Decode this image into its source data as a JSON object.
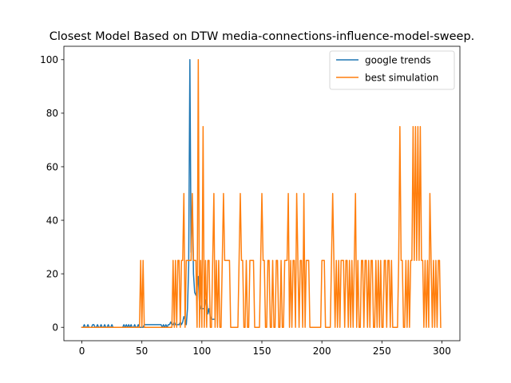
{
  "chart_data": {
    "type": "line",
    "title": "Closest Model Based on DTW media-connections-influence-model-sweep.",
    "xlabel": "",
    "ylabel": "",
    "xlim": [
      -15,
      315
    ],
    "ylim": [
      -5,
      105
    ],
    "xticks": [
      0,
      50,
      100,
      150,
      200,
      250,
      300
    ],
    "yticks": [
      0,
      20,
      40,
      60,
      80,
      100
    ],
    "legend_position": "upper right",
    "grid": false,
    "series": [
      {
        "name": "google trends",
        "color": "#1f77b4",
        "points": [
          [
            0,
            0
          ],
          [
            1,
            0
          ],
          [
            2,
            1
          ],
          [
            3,
            0
          ],
          [
            4,
            0
          ],
          [
            5,
            1
          ],
          [
            6,
            0
          ],
          [
            7,
            0
          ],
          [
            8,
            0
          ],
          [
            9,
            1
          ],
          [
            10,
            1
          ],
          [
            11,
            0
          ],
          [
            12,
            0
          ],
          [
            13,
            1
          ],
          [
            14,
            0
          ],
          [
            15,
            0
          ],
          [
            16,
            1
          ],
          [
            17,
            0
          ],
          [
            18,
            0
          ],
          [
            19,
            1
          ],
          [
            20,
            0
          ],
          [
            21,
            0
          ],
          [
            22,
            1
          ],
          [
            23,
            0
          ],
          [
            24,
            0
          ],
          [
            25,
            1
          ],
          [
            26,
            0
          ],
          [
            27,
            0
          ],
          [
            28,
            0
          ],
          [
            29,
            0
          ],
          [
            30,
            0
          ],
          [
            31,
            0
          ],
          [
            32,
            0
          ],
          [
            33,
            0
          ],
          [
            34,
            0
          ],
          [
            35,
            1
          ],
          [
            36,
            0
          ],
          [
            37,
            1
          ],
          [
            38,
            0
          ],
          [
            39,
            1
          ],
          [
            40,
            0
          ],
          [
            41,
            1
          ],
          [
            42,
            0
          ],
          [
            43,
            0
          ],
          [
            44,
            1
          ],
          [
            45,
            0
          ],
          [
            46,
            0
          ],
          [
            47,
            1
          ],
          [
            48,
            0
          ],
          [
            49,
            0
          ],
          [
            50,
            0
          ],
          [
            51,
            0
          ],
          [
            52,
            1
          ],
          [
            53,
            1
          ],
          [
            54,
            1
          ],
          [
            55,
            1
          ],
          [
            56,
            1
          ],
          [
            57,
            1
          ],
          [
            58,
            1
          ],
          [
            59,
            1
          ],
          [
            60,
            1
          ],
          [
            61,
            1
          ],
          [
            62,
            1
          ],
          [
            63,
            1
          ],
          [
            64,
            1
          ],
          [
            65,
            1
          ],
          [
            66,
            1
          ],
          [
            67,
            0
          ],
          [
            68,
            1
          ],
          [
            69,
            0
          ],
          [
            70,
            1
          ],
          [
            71,
            0
          ],
          [
            72,
            1
          ],
          [
            73,
            1
          ],
          [
            74,
            2
          ],
          [
            75,
            1
          ],
          [
            76,
            1
          ],
          [
            77,
            2
          ],
          [
            78,
            1
          ],
          [
            79,
            1
          ],
          [
            80,
            1
          ],
          [
            81,
            1
          ],
          [
            82,
            2
          ],
          [
            83,
            1
          ],
          [
            84,
            2
          ],
          [
            85,
            4
          ],
          [
            86,
            3
          ],
          [
            87,
            1
          ],
          [
            88,
            7
          ],
          [
            89,
            23
          ],
          [
            90,
            100
          ],
          [
            91,
            28
          ],
          [
            92,
            47
          ],
          [
            93,
            20
          ],
          [
            94,
            13
          ],
          [
            95,
            12
          ],
          [
            96,
            15
          ],
          [
            97,
            19
          ],
          [
            98,
            9
          ],
          [
            99,
            7
          ],
          [
            100,
            7
          ],
          [
            101,
            7
          ],
          [
            102,
            7
          ],
          [
            103,
            10
          ],
          [
            104,
            11
          ],
          [
            105,
            5
          ],
          [
            106,
            7
          ],
          [
            107,
            4
          ],
          [
            108,
            3
          ],
          [
            109,
            3
          ],
          [
            110,
            3
          ]
        ]
      },
      {
        "name": "best simulation",
        "color": "#ff7f0e",
        "points": [
          [
            0,
            0
          ],
          [
            48,
            0
          ],
          [
            49,
            25
          ],
          [
            50,
            0
          ],
          [
            51,
            25
          ],
          [
            52,
            0
          ],
          [
            75,
            0
          ],
          [
            76,
            25
          ],
          [
            77,
            0
          ],
          [
            78,
            25
          ],
          [
            79,
            0
          ],
          [
            80,
            25
          ],
          [
            81,
            25
          ],
          [
            82,
            0
          ],
          [
            83,
            25
          ],
          [
            84,
            25
          ],
          [
            85,
            50
          ],
          [
            86,
            0
          ],
          [
            87,
            25
          ],
          [
            88,
            25
          ],
          [
            89,
            25
          ],
          [
            90,
            25
          ],
          [
            91,
            25
          ],
          [
            92,
            50
          ],
          [
            93,
            25
          ],
          [
            94,
            25
          ],
          [
            95,
            25
          ],
          [
            96,
            0
          ],
          [
            97,
            100
          ],
          [
            98,
            0
          ],
          [
            99,
            25
          ],
          [
            100,
            0
          ],
          [
            101,
            75
          ],
          [
            102,
            0
          ],
          [
            103,
            25
          ],
          [
            104,
            0
          ],
          [
            105,
            25
          ],
          [
            106,
            25
          ],
          [
            107,
            0
          ],
          [
            108,
            0
          ],
          [
            109,
            25
          ],
          [
            110,
            50
          ],
          [
            111,
            0
          ],
          [
            112,
            25
          ],
          [
            113,
            0
          ],
          [
            114,
            25
          ],
          [
            115,
            0
          ],
          [
            116,
            0
          ],
          [
            117,
            25
          ],
          [
            118,
            50
          ],
          [
            119,
            25
          ],
          [
            120,
            25
          ],
          [
            121,
            25
          ],
          [
            122,
            25
          ],
          [
            123,
            25
          ],
          [
            124,
            0
          ],
          [
            130,
            0
          ],
          [
            131,
            25
          ],
          [
            132,
            50
          ],
          [
            133,
            25
          ],
          [
            134,
            25
          ],
          [
            135,
            0
          ],
          [
            136,
            0
          ],
          [
            137,
            25
          ],
          [
            138,
            0
          ],
          [
            139,
            0
          ],
          [
            140,
            25
          ],
          [
            141,
            25
          ],
          [
            142,
            25
          ],
          [
            143,
            25
          ],
          [
            144,
            0
          ],
          [
            148,
            0
          ],
          [
            149,
            25
          ],
          [
            150,
            50
          ],
          [
            151,
            25
          ],
          [
            152,
            25
          ],
          [
            153,
            0
          ],
          [
            154,
            0
          ],
          [
            155,
            25
          ],
          [
            156,
            25
          ],
          [
            157,
            0
          ],
          [
            158,
            0
          ],
          [
            159,
            25
          ],
          [
            160,
            0
          ],
          [
            161,
            0
          ],
          [
            162,
            25
          ],
          [
            163,
            25
          ],
          [
            164,
            0
          ],
          [
            165,
            0
          ],
          [
            166,
            25
          ],
          [
            167,
            0
          ],
          [
            168,
            0
          ],
          [
            169,
            25
          ],
          [
            170,
            25
          ],
          [
            171,
            25
          ],
          [
            172,
            50
          ],
          [
            173,
            0
          ],
          [
            174,
            25
          ],
          [
            175,
            0
          ],
          [
            176,
            25
          ],
          [
            177,
            25
          ],
          [
            178,
            0
          ],
          [
            179,
            50
          ],
          [
            180,
            25
          ],
          [
            181,
            0
          ],
          [
            182,
            25
          ],
          [
            183,
            25
          ],
          [
            184,
            0
          ],
          [
            185,
            50
          ],
          [
            186,
            0
          ],
          [
            187,
            25
          ],
          [
            188,
            25
          ],
          [
            189,
            25
          ],
          [
            190,
            0
          ],
          [
            199,
            0
          ],
          [
            200,
            25
          ],
          [
            201,
            25
          ],
          [
            202,
            25
          ],
          [
            203,
            0
          ],
          [
            207,
            0
          ],
          [
            208,
            25
          ],
          [
            209,
            50
          ],
          [
            210,
            25
          ],
          [
            211,
            0
          ],
          [
            212,
            25
          ],
          [
            213,
            0
          ],
          [
            214,
            25
          ],
          [
            215,
            0
          ],
          [
            216,
            25
          ],
          [
            217,
            25
          ],
          [
            218,
            25
          ],
          [
            219,
            0
          ],
          [
            220,
            25
          ],
          [
            221,
            25
          ],
          [
            222,
            0
          ],
          [
            223,
            25
          ],
          [
            224,
            0
          ],
          [
            225,
            25
          ],
          [
            226,
            0
          ],
          [
            227,
            25
          ],
          [
            228,
            50
          ],
          [
            229,
            0
          ],
          [
            230,
            25
          ],
          [
            231,
            0
          ],
          [
            232,
            0
          ],
          [
            233,
            25
          ],
          [
            234,
            25
          ],
          [
            235,
            0
          ],
          [
            236,
            25
          ],
          [
            237,
            25
          ],
          [
            238,
            0
          ],
          [
            239,
            25
          ],
          [
            240,
            0
          ],
          [
            241,
            25
          ],
          [
            242,
            25
          ],
          [
            243,
            0
          ],
          [
            244,
            0
          ],
          [
            245,
            25
          ],
          [
            246,
            0
          ],
          [
            247,
            25
          ],
          [
            248,
            0
          ],
          [
            249,
            25
          ],
          [
            250,
            0
          ],
          [
            251,
            0
          ],
          [
            252,
            25
          ],
          [
            253,
            25
          ],
          [
            254,
            0
          ],
          [
            255,
            25
          ],
          [
            256,
            25
          ],
          [
            257,
            0
          ],
          [
            258,
            25
          ],
          [
            259,
            0
          ],
          [
            263,
            0
          ],
          [
            264,
            25
          ],
          [
            265,
            75
          ],
          [
            266,
            25
          ],
          [
            267,
            25
          ],
          [
            268,
            0
          ],
          [
            269,
            0
          ],
          [
            270,
            25
          ],
          [
            271,
            0
          ],
          [
            272,
            25
          ],
          [
            273,
            0
          ],
          [
            274,
            25
          ],
          [
            275,
            25
          ],
          [
            276,
            75
          ],
          [
            277,
            25
          ],
          [
            278,
            75
          ],
          [
            279,
            25
          ],
          [
            280,
            75
          ],
          [
            281,
            25
          ],
          [
            282,
            75
          ],
          [
            283,
            25
          ],
          [
            284,
            25
          ],
          [
            285,
            0
          ],
          [
            286,
            25
          ],
          [
            287,
            0
          ],
          [
            288,
            25
          ],
          [
            289,
            0
          ],
          [
            290,
            50
          ],
          [
            291,
            25
          ],
          [
            292,
            0
          ],
          [
            293,
            25
          ],
          [
            294,
            0
          ],
          [
            295,
            25
          ],
          [
            296,
            0
          ],
          [
            297,
            25
          ],
          [
            298,
            25
          ],
          [
            299,
            0
          ]
        ]
      }
    ]
  }
}
